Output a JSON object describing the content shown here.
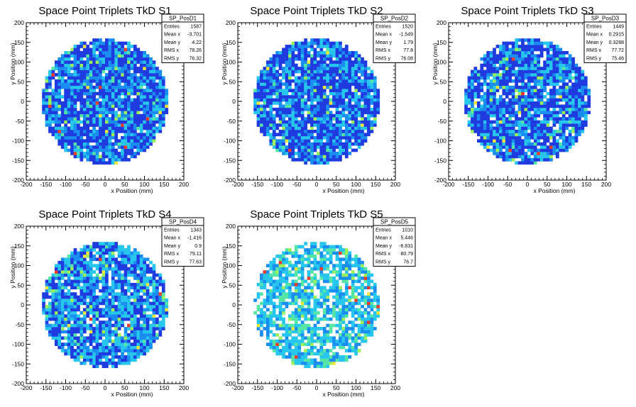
{
  "chart_data": [
    {
      "type": "heatmap",
      "title": "Space Point Triplets TkD S1",
      "xlabel": "x Position (mm)",
      "ylabel": "y Position (mm)",
      "xlim": [
        -200,
        200
      ],
      "ylim": [
        -200,
        200
      ],
      "xticks": [
        -200,
        -150,
        -100,
        -50,
        0,
        50,
        100,
        150,
        200
      ],
      "yticks": [
        -200,
        -150,
        -100,
        -50,
        0,
        50,
        100,
        150,
        200
      ],
      "distribution": {
        "shape": "disc",
        "radius": 160,
        "bin_width": 8,
        "fill_fraction": 0.93,
        "hot_fraction": 0.06
      },
      "stats": {
        "name": "SP_PosD1",
        "rows": [
          {
            "label": "Entries",
            "value": "1587"
          },
          {
            "label": "Mean x",
            "value": "-3.701"
          },
          {
            "label": "Mean y",
            "value": "4.22"
          },
          {
            "label": "RMS x",
            "value": "78.26"
          },
          {
            "label": "RMS y",
            "value": "76.32"
          }
        ]
      }
    },
    {
      "type": "heatmap",
      "title": "Space Point Triplets TkD S2",
      "xlabel": "x Position (mm)",
      "ylabel": "y Position (mm)",
      "xlim": [
        -200,
        200
      ],
      "ylim": [
        -200,
        200
      ],
      "xticks": [
        -200,
        -150,
        -100,
        -50,
        0,
        50,
        100,
        150,
        200
      ],
      "yticks": [
        -200,
        -150,
        -100,
        -50,
        0,
        50,
        100,
        150,
        200
      ],
      "distribution": {
        "shape": "disc",
        "radius": 160,
        "bin_width": 8,
        "fill_fraction": 0.92,
        "hot_fraction": 0.05
      },
      "stats": {
        "name": "SP_PosD2",
        "rows": [
          {
            "label": "Entries",
            "value": "1520"
          },
          {
            "label": "Mean x",
            "value": "-1.549"
          },
          {
            "label": "Mean y",
            "value": "1.79"
          },
          {
            "label": "RMS x",
            "value": "77.8"
          },
          {
            "label": "RMS y",
            "value": "76.08"
          }
        ]
      }
    },
    {
      "type": "heatmap",
      "title": "Space Point Triplets TkD S3",
      "xlabel": "x Position (mm)",
      "ylabel": "y Position (mm)",
      "xlim": [
        -200,
        200
      ],
      "ylim": [
        -200,
        200
      ],
      "xticks": [
        -200,
        -150,
        -100,
        -50,
        0,
        50,
        100,
        150,
        200
      ],
      "yticks": [
        -200,
        -150,
        -100,
        -50,
        0,
        50,
        100,
        150,
        200
      ],
      "distribution": {
        "shape": "disc",
        "radius": 160,
        "bin_width": 8,
        "fill_fraction": 0.9,
        "hot_fraction": 0.05
      },
      "stats": {
        "name": "SP_PosD3",
        "rows": [
          {
            "label": "Entries",
            "value": "1449"
          },
          {
            "label": "Mean x",
            "value": "0.2915"
          },
          {
            "label": "Mean y",
            "value": "0.3288"
          },
          {
            "label": "RMS x",
            "value": "77.72"
          },
          {
            "label": "RMS y",
            "value": "75.46"
          }
        ]
      }
    },
    {
      "type": "heatmap",
      "title": "Space Point Triplets TkD S4",
      "xlabel": "x Position (mm)",
      "ylabel": "y Position (mm)",
      "xlim": [
        -200,
        200
      ],
      "ylim": [
        -200,
        200
      ],
      "xticks": [
        -200,
        -150,
        -100,
        -50,
        0,
        50,
        100,
        150,
        200
      ],
      "yticks": [
        -200,
        -150,
        -100,
        -50,
        0,
        50,
        100,
        150,
        200
      ],
      "distribution": {
        "shape": "disc",
        "radius": 160,
        "bin_width": 8,
        "fill_fraction": 0.88,
        "hot_fraction": 0.07
      },
      "stats": {
        "name": "SP_PosD4",
        "rows": [
          {
            "label": "Entries",
            "value": "1343"
          },
          {
            "label": "Mean x",
            "value": "-1.416"
          },
          {
            "label": "Mean y",
            "value": "0.9"
          },
          {
            "label": "RMS x",
            "value": "79.11"
          },
          {
            "label": "RMS y",
            "value": "77.63"
          }
        ]
      }
    },
    {
      "type": "heatmap",
      "title": "Space Point Triplets TkD S5",
      "xlabel": "x Position (mm)",
      "ylabel": "y Position (mm)",
      "xlim": [
        -200,
        200
      ],
      "ylim": [
        -200,
        200
      ],
      "xticks": [
        -200,
        -150,
        -100,
        -50,
        0,
        50,
        100,
        150,
        200
      ],
      "yticks": [
        -200,
        -150,
        -100,
        -50,
        0,
        50,
        100,
        150,
        200
      ],
      "distribution": {
        "shape": "disc",
        "radius": 160,
        "bin_width": 8,
        "fill_fraction": 0.75,
        "hot_fraction": 0.12
      },
      "stats": {
        "name": "SP_PosD5",
        "rows": [
          {
            "label": "Entries",
            "value": "1010"
          },
          {
            "label": "Mean x",
            "value": "5.446"
          },
          {
            "label": "Mean y",
            "value": "-6.831"
          },
          {
            "label": "RMS x",
            "value": "80.79"
          },
          {
            "label": "RMS y",
            "value": "76.7"
          }
        ]
      }
    }
  ],
  "palette": [
    "#1f3be0",
    "#1a8ef0",
    "#27c6ec",
    "#55e6a6",
    "#9cf05a",
    "#f0e63c",
    "#ef3b2a"
  ]
}
